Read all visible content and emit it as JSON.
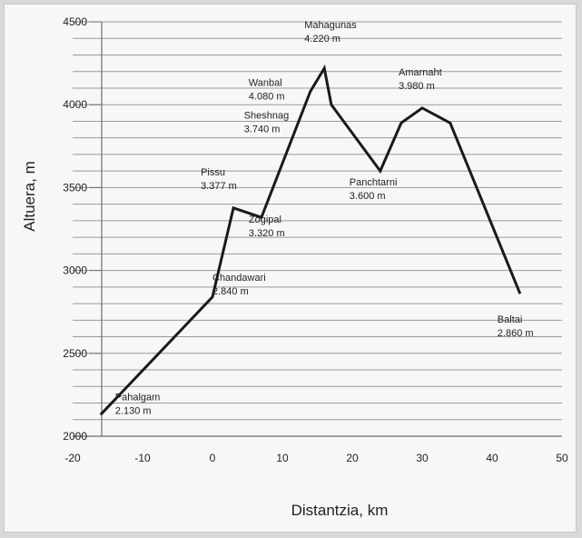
{
  "chart_data": {
    "type": "line",
    "title": "",
    "xlabel": "Distantzia, km",
    "ylabel": "Altuera, m",
    "xlim": [
      -20,
      50
    ],
    "ylim": [
      2000,
      4500
    ],
    "x_ticks": [
      "-20",
      "-10",
      "0",
      "10",
      "20",
      "30",
      "40",
      "50"
    ],
    "y_ticks": [
      "2000",
      "2500",
      "3000",
      "3500",
      "4000",
      "4500"
    ],
    "y_gridline_step": 100,
    "grid": true,
    "line_color": "#1a1a1a",
    "series": [
      {
        "x": [
          -16,
          0,
          3,
          7,
          14,
          16,
          17,
          24,
          27,
          30,
          34,
          44
        ],
        "y": [
          2130,
          2840,
          3377,
          3320,
          4080,
          4220,
          4000,
          3600,
          3890,
          3980,
          3890,
          2860
        ]
      }
    ],
    "annotations": [
      {
        "name": "Pahalgam",
        "value": "2.130 m",
        "x": -16,
        "y": 2130
      },
      {
        "name": "Chandawari",
        "value": "2.840 m",
        "x": 0,
        "y": 2840
      },
      {
        "name": "Pissu",
        "value": "3.377 m",
        "x": 3,
        "y": 3377
      },
      {
        "name": "Zogipal",
        "value": "3.320 m",
        "x": 7,
        "y": 3320
      },
      {
        "name": "Sheshnag",
        "value": "3.740 m",
        "x": 11,
        "y": 3740
      },
      {
        "name": "Wanbal",
        "value": "4.080 m",
        "x": 14,
        "y": 4080
      },
      {
        "name": "Mahagunas",
        "value": "4.220 m",
        "x": 16,
        "y": 4220
      },
      {
        "name": "Panchtarni",
        "value": "3.600 m",
        "x": 24,
        "y": 3600
      },
      {
        "name": "Amarnaht",
        "value": "3.980 m",
        "x": 30,
        "y": 3980
      },
      {
        "name": "Baltai",
        "value": "2.860 m",
        "x": 44,
        "y": 2860
      }
    ]
  }
}
